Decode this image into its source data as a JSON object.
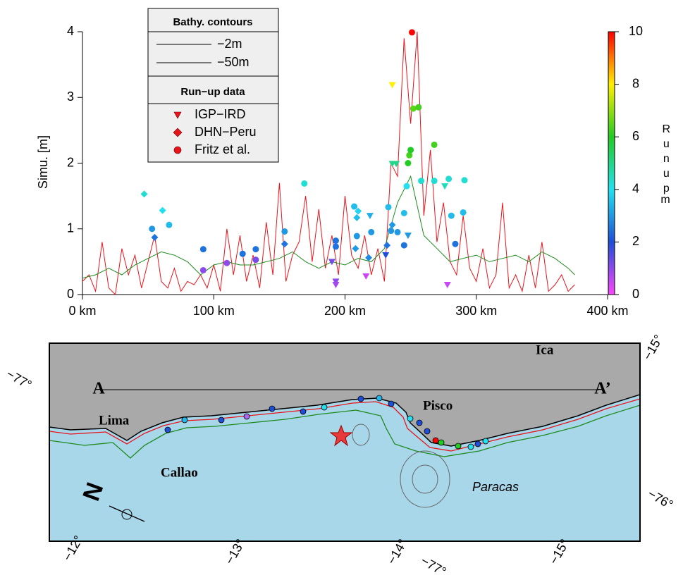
{
  "chart_data": {
    "type": "line",
    "ylabel": "Simu. [m]",
    "xlim": [
      0,
      400
    ],
    "xticks": [
      {
        "value": 0,
        "label": "0 km"
      },
      {
        "value": 100,
        "label": "100 km"
      },
      {
        "value": 200,
        "label": "200 km"
      },
      {
        "value": 300,
        "label": "300 km"
      },
      {
        "value": 400,
        "label": "400 km"
      }
    ],
    "ylim": [
      0,
      4
    ],
    "yticks": [
      0,
      1,
      2,
      3,
      4
    ],
    "legend_titles": [
      "Bathy. contours",
      "Run−up data"
    ],
    "colorbar_label": "Runup",
    "colorbar_unit": "m",
    "zlim": [
      0,
      10
    ],
    "zticks": [
      0,
      2,
      4,
      6,
      8,
      10
    ],
    "colormap": [
      "#ff44ff",
      "#1d4fd8",
      "#22e0f0",
      "#22cc22",
      "#ffee00",
      "#ff0000"
    ],
    "series": [
      {
        "name": "−2m",
        "color": "#e8141c",
        "x": [
          0,
          5,
          10,
          15,
          20,
          25,
          30,
          35,
          40,
          45,
          50,
          55,
          60,
          65,
          70,
          75,
          80,
          85,
          90,
          95,
          100,
          105,
          110,
          115,
          120,
          125,
          130,
          135,
          140,
          145,
          150,
          155,
          160,
          165,
          170,
          175,
          180,
          185,
          190,
          195,
          200,
          205,
          210,
          215,
          220,
          225,
          230,
          235,
          240,
          245,
          250,
          255,
          260,
          265,
          270,
          275,
          280,
          285,
          290,
          295,
          300,
          305,
          310,
          315,
          320,
          325,
          330,
          335,
          340,
          345,
          350,
          355,
          360,
          365,
          370,
          375
        ],
        "values": [
          0.2,
          0.3,
          0.05,
          0.8,
          0.1,
          0,
          0.7,
          0.3,
          0.6,
          0.1,
          0.5,
          0.9,
          0.2,
          0.1,
          0.4,
          0.05,
          0.2,
          0.15,
          0.3,
          0.1,
          0.45,
          0.05,
          1.0,
          0.3,
          0.9,
          0.2,
          0.6,
          0.1,
          1.1,
          0.3,
          1.7,
          0.2,
          0.6,
          0.8,
          1.5,
          0.5,
          1.3,
          0.4,
          0.9,
          0.3,
          1.5,
          0.6,
          0.4,
          0.9,
          0.3,
          0.7,
          0.2,
          2.0,
          1.8,
          3.9,
          2.6,
          4.0,
          1.2,
          2.2,
          0.8,
          1.4,
          0.5,
          0.3,
          1.2,
          0.4,
          0.2,
          0.7,
          0.1,
          0.3,
          1.4,
          0.1,
          0.3,
          0.05,
          0.6,
          0.1,
          0.8,
          0.05,
          0.15,
          0.3,
          0.05,
          0.15
        ]
      },
      {
        "name": "−50m",
        "color": "#1e8a1e",
        "x": [
          0,
          10,
          20,
          30,
          40,
          50,
          60,
          70,
          80,
          90,
          100,
          110,
          120,
          130,
          140,
          150,
          160,
          170,
          180,
          190,
          200,
          210,
          220,
          230,
          240,
          250,
          260,
          270,
          280,
          290,
          300,
          310,
          320,
          330,
          340,
          350,
          360,
          370,
          375
        ],
        "values": [
          0.25,
          0.3,
          0.4,
          0.3,
          0.45,
          0.55,
          0.65,
          0.6,
          0.5,
          0.3,
          0.45,
          0.5,
          0.45,
          0.45,
          0.5,
          0.55,
          0.65,
          0.5,
          0.4,
          0.5,
          0.45,
          0.55,
          0.5,
          0.7,
          1.4,
          1.8,
          0.9,
          0.7,
          0.5,
          0.55,
          0.6,
          0.5,
          0.55,
          0.6,
          0.5,
          0.65,
          0.55,
          0.4,
          0.3
        ]
      },
      {
        "name": "IGP−IRD",
        "marker": "triangle",
        "x": [
          190,
          193,
          193,
          216,
          219,
          236,
          236,
          239,
          231,
          278,
          276,
          248
        ],
        "values": [
          0.5,
          0.2,
          0.15,
          0.28,
          1.2,
          3.19,
          1.99,
          1.99,
          0.6,
          0.15,
          1.65,
          0.9
        ],
        "runup": [
          1.2,
          1,
          0.8,
          0.5,
          3.3,
          8,
          5,
          5,
          2,
          0.5,
          4.5,
          3
        ]
      },
      {
        "name": "DHN−Peru",
        "marker": "diamond",
        "x": [
          47,
          61,
          55,
          154,
          209,
          210,
          208,
          218,
          232,
          236
        ],
        "values": [
          1.53,
          1.28,
          0.87,
          0.77,
          1.17,
          1.27,
          0.7,
          0.56,
          0.75,
          1.06
        ],
        "runup": [
          4.3,
          4,
          2.5,
          2.5,
          3.5,
          3.8,
          3,
          2.8,
          2.5,
          3
        ]
      },
      {
        "name": "Fritz et al.",
        "marker": "circle",
        "x": [
          53,
          66,
          92,
          92,
          110,
          122,
          132,
          132,
          154,
          169,
          193,
          193,
          207,
          209,
          220,
          233,
          235,
          240,
          245,
          247,
          248,
          249,
          250,
          251,
          252,
          256,
          258,
          268,
          268,
          279,
          281,
          284,
          290,
          291,
          245
        ],
        "values": [
          1.0,
          1.06,
          0.69,
          0.37,
          0.48,
          0.62,
          0.69,
          0.53,
          0.96,
          1.69,
          0.82,
          0.73,
          1.34,
          0.89,
          0.95,
          1.33,
          0.97,
          0.95,
          1.24,
          1.65,
          2.0,
          2.12,
          2.2,
          3.99,
          2.83,
          2.85,
          1.73,
          2.28,
          1.73,
          1.76,
          1.2,
          0.77,
          1.25,
          1.74,
          0.75
        ],
        "runup": [
          3,
          3.5,
          2.5,
          1,
          1,
          2.5,
          2.5,
          1.2,
          3,
          4.3,
          2.5,
          2.5,
          3.5,
          3,
          3,
          3.5,
          3,
          3,
          3.5,
          4,
          6,
          6.3,
          6,
          10,
          6.5,
          6.3,
          4.3,
          6.3,
          4.3,
          4.3,
          3.5,
          2.5,
          3.5,
          4.3,
          2.5
        ]
      }
    ]
  },
  "map": {
    "labels": [
      "A",
      "A’",
      "Lima",
      "Callao",
      "Pisco",
      "Ica",
      "Paracas",
      "N",
      "−12°",
      "−13°",
      "−14°",
      "−15°",
      "−77°",
      "−77°",
      "−15°",
      "−76°"
    ]
  }
}
